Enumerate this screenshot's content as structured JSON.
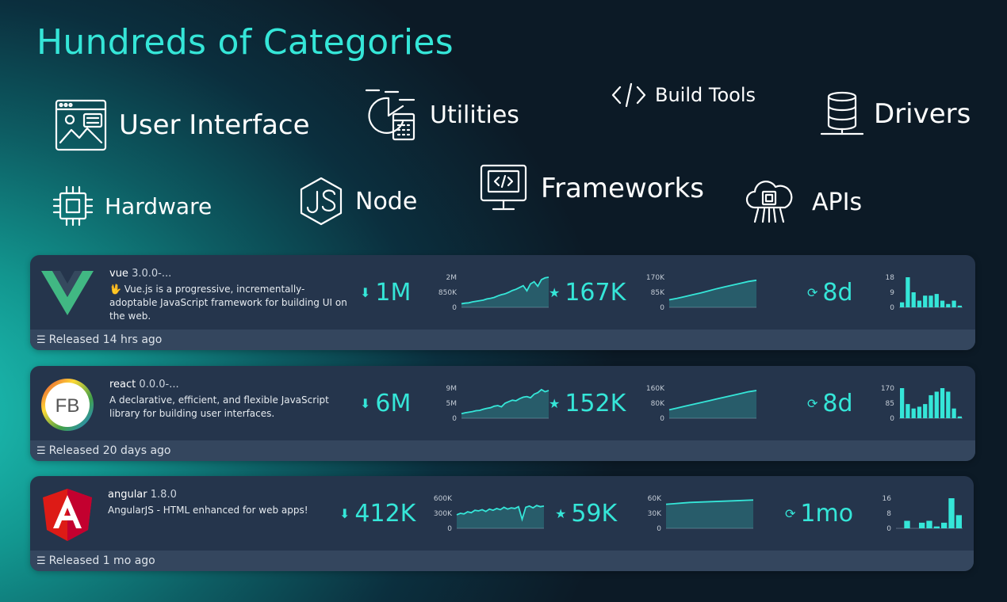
{
  "title": "Hundreds of Categories",
  "categories": {
    "user_interface": "User Interface",
    "utilities": "Utilities",
    "build_tools": "Build Tools",
    "drivers": "Drivers",
    "hardware": "Hardware",
    "node": "Node",
    "frameworks": "Frameworks",
    "apis": "APIs"
  },
  "colors": {
    "accent": "#35e6d8",
    "card": "#25354c",
    "footer": "#34465e"
  },
  "packages": [
    {
      "name": "vue",
      "version": "3.0.0-...",
      "description": "🖖 Vue.js is a progressive, incrementally-adoptable JavaScript framework for building UI on the web.",
      "downloads": "1M",
      "downloads_ticks": [
        "2M",
        "850K",
        "0"
      ],
      "downloads_series": [
        0.12,
        0.14,
        0.15,
        0.18,
        0.2,
        0.22,
        0.24,
        0.28,
        0.3,
        0.33,
        0.38,
        0.42,
        0.45,
        0.5,
        0.56,
        0.6,
        0.66,
        0.72,
        0.55,
        0.78,
        0.85,
        0.7,
        0.92,
        0.98,
        1.0
      ],
      "stars": "167K",
      "stars_ticks": [
        "170K",
        "85K",
        "0"
      ],
      "stars_series": [
        0.25,
        0.3,
        0.36,
        0.42,
        0.48,
        0.55,
        0.62,
        0.68,
        0.74,
        0.8,
        0.86,
        0.9
      ],
      "age": "8d",
      "commits_ticks": [
        "18",
        "9",
        "0"
      ],
      "commits": [
        3,
        18,
        9,
        4,
        7,
        7,
        8,
        4,
        2,
        4,
        1
      ],
      "released": "Released 14 hrs ago"
    },
    {
      "name": "react",
      "version": "0.0.0-...",
      "description": "A declarative, efficient, and flexible JavaScript library for building user interfaces.",
      "logo_text": "FB",
      "downloads": "6M",
      "downloads_ticks": [
        "9M",
        "5M",
        "0"
      ],
      "downloads_series": [
        0.15,
        0.18,
        0.2,
        0.22,
        0.25,
        0.26,
        0.3,
        0.33,
        0.35,
        0.4,
        0.42,
        0.38,
        0.5,
        0.55,
        0.6,
        0.58,
        0.65,
        0.7,
        0.72,
        0.68,
        0.8,
        0.85,
        0.95,
        0.88,
        0.92
      ],
      "stars": "152K",
      "stars_ticks": [
        "160K",
        "80K",
        "0"
      ],
      "stars_series": [
        0.28,
        0.34,
        0.4,
        0.46,
        0.52,
        0.58,
        0.64,
        0.7,
        0.76,
        0.82,
        0.88,
        0.92
      ],
      "age": "8d",
      "commits_ticks": [
        "170",
        "85",
        "0"
      ],
      "commits": [
        170,
        80,
        55,
        65,
        80,
        130,
        150,
        170,
        150,
        55,
        10
      ],
      "released": "Released 20 days ago"
    },
    {
      "name": "angular",
      "version": "1.8.0",
      "description": "AngularJS - HTML enhanced for web apps!",
      "downloads": "412K",
      "downloads_ticks": [
        "600K",
        "300K",
        "0"
      ],
      "downloads_series": [
        0.45,
        0.5,
        0.48,
        0.55,
        0.52,
        0.6,
        0.58,
        0.62,
        0.56,
        0.64,
        0.6,
        0.66,
        0.62,
        0.7,
        0.64,
        0.68,
        0.66,
        0.72,
        0.3,
        0.7,
        0.74,
        0.68,
        0.76,
        0.72,
        0.74
      ],
      "stars": "59K",
      "stars_ticks": [
        "60K",
        "30K",
        "0"
      ],
      "stars_series": [
        0.8,
        0.82,
        0.84,
        0.86,
        0.87,
        0.88,
        0.89,
        0.9,
        0.91,
        0.92,
        0.93,
        0.94
      ],
      "age": "1mo",
      "commits_ticks": [
        "16",
        "8",
        "0"
      ],
      "commits": [
        0,
        4,
        0,
        3,
        4,
        1,
        3,
        16,
        7
      ],
      "released": "Released 1 mo ago"
    }
  ]
}
